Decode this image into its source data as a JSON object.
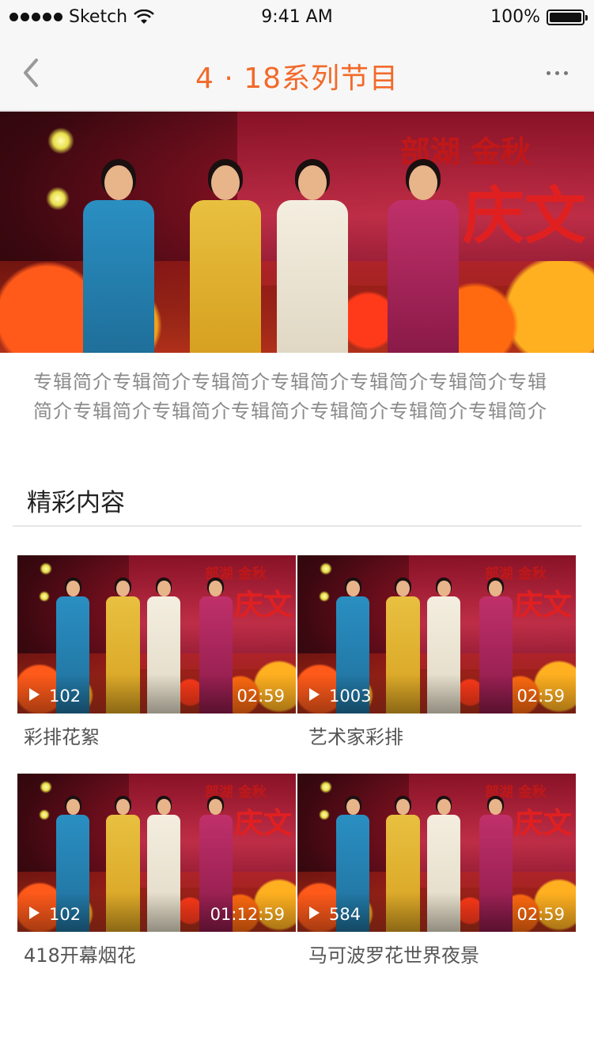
{
  "status_bar": {
    "carrier": "Sketch",
    "time": "9:41 AM",
    "battery": "100%"
  },
  "nav": {
    "title": "4 · 18系列节目",
    "back_icon": "chevron-left-icon",
    "more_icon": "ellipsis-icon"
  },
  "intro": "专辑简介专辑简介专辑简介专辑简介专辑简介专辑简介专辑简介专辑简介专辑简介专辑简介专辑简介专辑简介专辑简介",
  "section": {
    "title": "精彩内容"
  },
  "videos": [
    {
      "plays": "102",
      "duration": "02:59",
      "title": "彩排花絮"
    },
    {
      "plays": "1003",
      "duration": "02:59",
      "title": "艺术家彩排"
    },
    {
      "plays": "102",
      "duration": "01:12:59",
      "title": "418开幕烟花"
    },
    {
      "plays": "584",
      "duration": "02:59",
      "title": "马可波罗花世界夜景"
    }
  ],
  "photo_sign": "部湖 金秋 庆文",
  "colors": {
    "accent": "#f26a2a",
    "nav_bg": "#f7f7f7",
    "intro_text": "#8a8a8a"
  }
}
